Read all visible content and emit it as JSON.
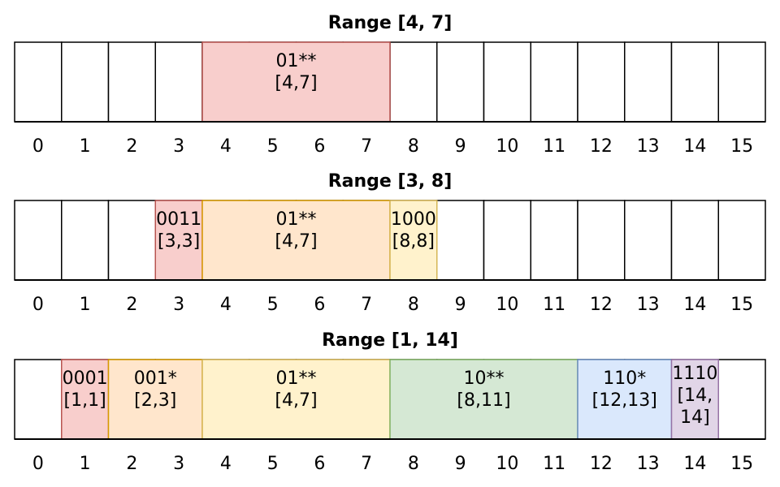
{
  "cell_count": 16,
  "ticks": [
    "0",
    "1",
    "2",
    "3",
    "4",
    "5",
    "6",
    "7",
    "8",
    "9",
    "10",
    "11",
    "12",
    "13",
    "14",
    "15"
  ],
  "palette": {
    "red": {
      "fill": "#f8cecc",
      "stroke": "#b85450"
    },
    "orange": {
      "fill": "#ffe6cc",
      "stroke": "#d79b00"
    },
    "yellow": {
      "fill": "#fff2cc",
      "stroke": "#d6b656"
    },
    "green": {
      "fill": "#d5e8d4",
      "stroke": "#82b366"
    },
    "blue": {
      "fill": "#dae8fc",
      "stroke": "#6c8ebf"
    },
    "purple": {
      "fill": "#e1d5e7",
      "stroke": "#9673a6"
    }
  },
  "panels": [
    {
      "title": "Range [4, 7]",
      "segments": [
        {
          "start": 4,
          "end": 7,
          "lines": [
            "01**",
            "[4,7]"
          ],
          "color": "red"
        }
      ]
    },
    {
      "title": "Range [3, 8]",
      "segments": [
        {
          "start": 3,
          "end": 3,
          "lines": [
            "0011",
            "[3,3]"
          ],
          "color": "red"
        },
        {
          "start": 4,
          "end": 7,
          "lines": [
            "01**",
            "[4,7]"
          ],
          "color": "orange"
        },
        {
          "start": 8,
          "end": 8,
          "lines": [
            "1000",
            "[8,8]"
          ],
          "color": "yellow"
        }
      ]
    },
    {
      "title": "Range [1, 14]",
      "segments": [
        {
          "start": 1,
          "end": 1,
          "lines": [
            "0001",
            "[1,1]"
          ],
          "color": "red"
        },
        {
          "start": 2,
          "end": 3,
          "lines": [
            "001*",
            "[2,3]"
          ],
          "color": "orange"
        },
        {
          "start": 4,
          "end": 7,
          "lines": [
            "01**",
            "[4,7]"
          ],
          "color": "yellow"
        },
        {
          "start": 8,
          "end": 11,
          "lines": [
            "10**",
            "[8,11]"
          ],
          "color": "green"
        },
        {
          "start": 12,
          "end": 13,
          "lines": [
            "110*",
            "[12,13]"
          ],
          "color": "blue"
        },
        {
          "start": 14,
          "end": 14,
          "lines": [
            "1110",
            "[14,",
            "14]"
          ],
          "color": "purple"
        }
      ]
    }
  ]
}
